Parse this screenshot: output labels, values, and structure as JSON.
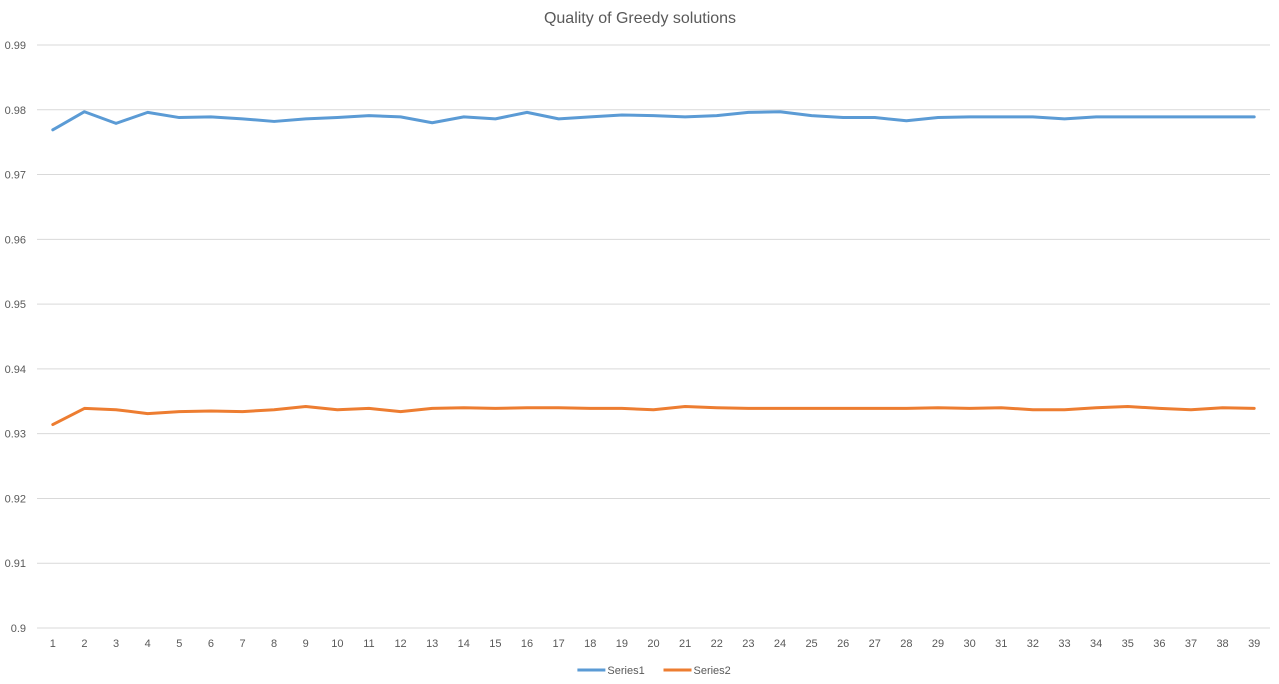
{
  "chart_data": {
    "type": "line",
    "title": "Quality of Greedy solutions",
    "xlabel": "",
    "ylabel": "",
    "x": [
      1,
      2,
      3,
      4,
      5,
      6,
      7,
      8,
      9,
      10,
      11,
      12,
      13,
      14,
      15,
      16,
      17,
      18,
      19,
      20,
      21,
      22,
      23,
      24,
      25,
      26,
      27,
      28,
      29,
      30,
      31,
      32,
      33,
      34,
      35,
      36,
      37,
      38,
      39
    ],
    "ylim": [
      0.9,
      0.99
    ],
    "yticks": [
      "0.9",
      "0.91",
      "0.92",
      "0.93",
      "0.94",
      "0.95",
      "0.96",
      "0.97",
      "0.98",
      "0.99"
    ],
    "grid": true,
    "legend_position": "bottom",
    "series": [
      {
        "name": "Series1",
        "color": "#5b9bd5",
        "values": [
          0.9769,
          0.9797,
          0.9779,
          0.9796,
          0.9788,
          0.9789,
          0.9786,
          0.9782,
          0.9786,
          0.9788,
          0.9791,
          0.9789,
          0.978,
          0.9789,
          0.9786,
          0.9796,
          0.9786,
          0.9789,
          0.9792,
          0.9791,
          0.9789,
          0.9791,
          0.9796,
          0.9797,
          0.9791,
          0.9788,
          0.9788,
          0.9783,
          0.9788,
          0.9789,
          0.9789,
          0.9789,
          0.9786,
          0.9789,
          0.9789,
          0.9789,
          0.9789,
          0.9789,
          0.9789
        ]
      },
      {
        "name": "Series2",
        "color": "#ed7d31",
        "values": [
          0.9314,
          0.9339,
          0.9337,
          0.9331,
          0.9334,
          0.9335,
          0.9334,
          0.9337,
          0.9342,
          0.9337,
          0.9339,
          0.9334,
          0.9339,
          0.934,
          0.9339,
          0.934,
          0.934,
          0.9339,
          0.9339,
          0.9337,
          0.9342,
          0.934,
          0.9339,
          0.9339,
          0.9339,
          0.9339,
          0.9339,
          0.9339,
          0.934,
          0.9339,
          0.934,
          0.9337,
          0.9337,
          0.934,
          0.9342,
          0.9339,
          0.9337,
          0.934,
          0.9339
        ]
      }
    ]
  }
}
